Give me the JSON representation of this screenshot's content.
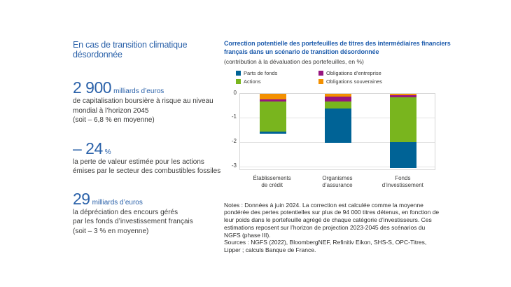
{
  "page": {
    "background": "#ffffff",
    "accent_blue": "#2a61a9"
  },
  "left_panel": {
    "title": "En cas de transition climatique désordonnée",
    "stats": [
      {
        "value": "2 900",
        "suffix": "milliards d’euros",
        "lines": [
          "de capitalisation boursière à risque au niveau",
          "mondial à l’horizon 2045",
          "(soit – 6,8 % en moyenne)"
        ]
      },
      {
        "value": "– 24",
        "suffix": "%",
        "lines": [
          "la perte de valeur estimée pour les actions",
          "émises par le secteur des combustibles fossiles"
        ]
      },
      {
        "value": "29",
        "suffix": "milliards d’euros",
        "lines": [
          "la dépréciation des encours gérés",
          "par les fonds d’investissement français",
          "(soit – 3 % en moyenne)"
        ]
      }
    ]
  },
  "right_panel": {
    "title_line1": "Correction potentielle des portefeuilles de titres des intermédiaires financiers",
    "title_line2": "français dans un scénario de transition désordonnée",
    "subtitle": "(contribution à la dévaluation des portefeuilles, en %)",
    "notes": "Notes : Données à juin 2024. La correction est calculée comme la moyenne pondérée des pertes potentielles sur plus de 94 000 titres détenus, en fonction de leur poids dans le portefeuille agrégé de chaque catégorie d’investisseurs. Ces estimations reposent sur l’horizon de projection 2023-2045 des scénarios du NGFS (phase III).",
    "sources": "Sources : NGFS (2022), BloombergNEF, Refinitiv Eikon, SHS-S, OPC-Titres, Lipper ; calculs Banque de France."
  },
  "chart_data": {
    "type": "bar",
    "stacked": true,
    "orientation": "vertical-negative",
    "title": "Correction potentielle des portefeuilles de titres des intermédiaires financiers français dans un scénario de transition désordonnée",
    "unit": "%",
    "categories": [
      [
        "Établissements",
        "de crédit"
      ],
      [
        "Organismes",
        "d’assurance"
      ],
      [
        "Fonds",
        "d’investissement"
      ]
    ],
    "series": [
      {
        "name": "Obligations souveraines",
        "color": "#f39000",
        "values": [
          -0.25,
          -0.14,
          -0.06
        ]
      },
      {
        "name": "Obligations d’entreprise",
        "color": "#97157f",
        "values": [
          -0.09,
          -0.18,
          -0.11
        ]
      },
      {
        "name": "Actions",
        "color": "#79b51e",
        "values": [
          -1.21,
          -0.29,
          -1.82
        ]
      },
      {
        "name": "Parts de fonds",
        "color": "#006396",
        "values": [
          -0.11,
          -1.4,
          -1.06
        ]
      }
    ],
    "totals": [
      -1.66,
      -2.01,
      -3.05
    ],
    "legend": [
      {
        "label": "Parts de fonds",
        "color": "#006396"
      },
      {
        "label": "Obligations d’entreprise",
        "color": "#97157f"
      },
      {
        "label": "Actions",
        "color": "#79b51e"
      },
      {
        "label": "Obligations souveraines",
        "color": "#f39000"
      }
    ],
    "y_ticks": [
      0,
      -1,
      -2,
      -3
    ],
    "ylim": [
      -3.15,
      0
    ],
    "grid": true,
    "legend_position": "top-left"
  }
}
